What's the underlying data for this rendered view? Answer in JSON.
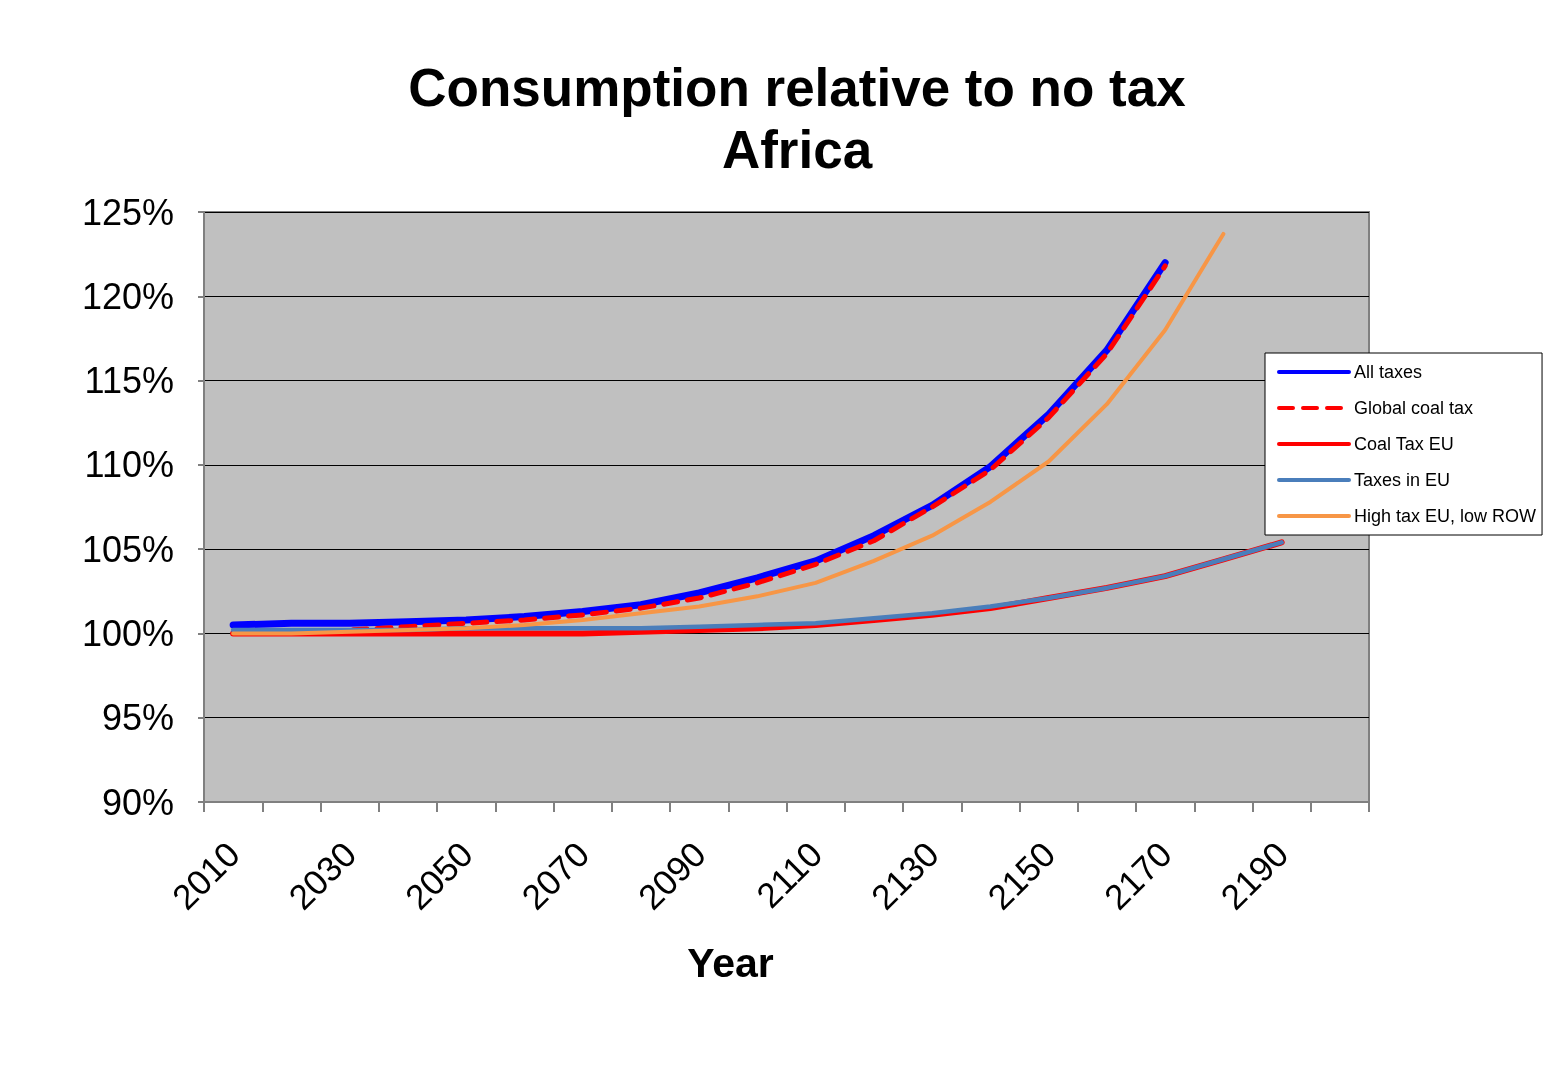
{
  "chart_data": {
    "type": "line",
    "title": "Consumption relative to no tax",
    "subtitle": "Africa",
    "xlabel": "Year",
    "categories": [
      "2010",
      null,
      "2030",
      null,
      "2050",
      null,
      "2070",
      null,
      "2090",
      null,
      "2110",
      null,
      "2130",
      null,
      "2150",
      null,
      "2170",
      null,
      "2190",
      null
    ],
    "series": [
      {
        "name": "All taxes",
        "color": "#0000ff",
        "line_style": "solid",
        "values": [
          100.5,
          100.6,
          100.6,
          100.7,
          100.8,
          101.0,
          101.3,
          101.7,
          102.4,
          103.3,
          104.3,
          105.8,
          107.6,
          109.9,
          113.0,
          116.8,
          122.0,
          null,
          null,
          null
        ]
      },
      {
        "name": "Global coal tax",
        "color": "#ff0000",
        "line_style": "dashed",
        "values": [
          100.0,
          100.0,
          100.2,
          100.4,
          100.6,
          100.8,
          101.1,
          101.5,
          102.1,
          103.0,
          104.1,
          105.5,
          107.5,
          109.7,
          112.8,
          116.6,
          121.8,
          null,
          null,
          null
        ]
      },
      {
        "name": "Coal Tax EU",
        "color": "#ff0000",
        "line_style": "solid",
        "values": [
          100.0,
          100.0,
          100.0,
          100.0,
          100.0,
          100.0,
          100.0,
          100.1,
          100.2,
          100.3,
          100.5,
          100.8,
          101.1,
          101.5,
          102.1,
          102.7,
          103.4,
          104.4,
          105.4,
          null
        ]
      },
      {
        "name": "Taxes in EU",
        "color": "#4a7ebb",
        "line_style": "solid",
        "values": [
          100.2,
          100.2,
          100.2,
          100.2,
          100.3,
          100.3,
          100.3,
          100.3,
          100.4,
          100.5,
          100.6,
          100.9,
          101.2,
          101.6,
          102.1,
          102.7,
          103.4,
          104.4,
          105.4,
          null
        ]
      },
      {
        "name": "High tax EU, low ROW",
        "color": "#f79646",
        "line_style": "solid",
        "values": [
          100.0,
          100.0,
          100.1,
          100.2,
          100.3,
          100.5,
          100.8,
          101.2,
          101.6,
          102.2,
          103.0,
          104.3,
          105.8,
          107.8,
          110.2,
          113.6,
          118.0,
          123.7,
          null,
          null
        ]
      }
    ],
    "ylim": [
      90,
      125
    ],
    "yticks": [
      {
        "value": 90,
        "label": "90%"
      },
      {
        "value": 95,
        "label": "95%"
      },
      {
        "value": 100,
        "label": "100%"
      },
      {
        "value": 105,
        "label": "105%"
      },
      {
        "value": 110,
        "label": "110%"
      },
      {
        "value": 115,
        "label": "115%"
      },
      {
        "value": 120,
        "label": "120%"
      },
      {
        "value": 125,
        "label": "125%"
      }
    ],
    "grid": "y",
    "legend": "right",
    "marker": "none"
  }
}
